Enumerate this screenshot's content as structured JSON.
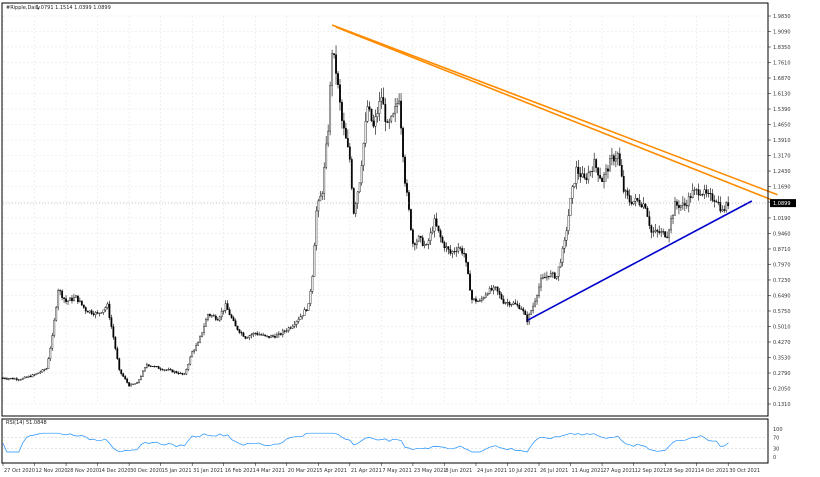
{
  "window": {
    "title": "#Ripple,Daily",
    "ohlc": "1.0791 1.1514 1.0399 1.0899",
    "current_price_label": "1.0899",
    "rsi_label": "RSI(14) 51.0848"
  },
  "colors": {
    "candles": "#000000",
    "resistance_lines": "#ff8c00",
    "support_line": "#0000cd",
    "rsi_line": "#1e90ff",
    "grid": "#d9d9d9",
    "price_marker": "#000000"
  },
  "chart_data": {
    "type": "candlestick",
    "price_axis_ticks": [
      "1.9830",
      "1.9090",
      "1.8350",
      "1.7610",
      "1.6870",
      "1.6130",
      "1.5390",
      "1.4650",
      "1.3910",
      "1.3170",
      "1.2430",
      "1.1690",
      "1.0950",
      "1.0190",
      "0.9460",
      "0.8710",
      "0.7970",
      "0.7230",
      "0.6490",
      "0.5750",
      "0.5010",
      "0.4270",
      "0.3530",
      "0.2790",
      "0.2050",
      "0.1310"
    ],
    "ylim": [
      0.131,
      1.983
    ],
    "x_ticks": [
      "27 Oct 2020",
      "12 Nov 2020",
      "28 Nov 2020",
      "14 Dec 2020",
      "30 Dec 2020",
      "15 Jan 2021",
      "31 Jan 2021",
      "16 Feb 2021",
      "4 Mar 2021",
      "20 Mar 2021",
      "5 Apr 2021",
      "21 Apr 2021",
      "7 May 2021",
      "23 May 2021",
      "8 Jun 2021",
      "24 Jun 2021",
      "10 Jul 2021",
      "26 Jul 2021",
      "11 Aug 2021",
      "27 Aug 2021",
      "12 Sep 2021",
      "28 Sep 2021",
      "14 Oct 2021",
      "30 Oct 2021"
    ],
    "close_path": [
      [
        "2020-10-27",
        0.255
      ],
      [
        "2020-11-05",
        0.25
      ],
      [
        "2020-11-12",
        0.27
      ],
      [
        "2020-11-18",
        0.3
      ],
      [
        "2020-11-21",
        0.45
      ],
      [
        "2020-11-24",
        0.68
      ],
      [
        "2020-11-28",
        0.62
      ],
      [
        "2020-12-03",
        0.64
      ],
      [
        "2020-12-08",
        0.58
      ],
      [
        "2020-12-14",
        0.56
      ],
      [
        "2020-12-19",
        0.6
      ],
      [
        "2020-12-22",
        0.45
      ],
      [
        "2020-12-25",
        0.29
      ],
      [
        "2020-12-30",
        0.22
      ],
      [
        "2021-01-03",
        0.23
      ],
      [
        "2021-01-08",
        0.32
      ],
      [
        "2021-01-15",
        0.3
      ],
      [
        "2021-01-20",
        0.29
      ],
      [
        "2021-01-27",
        0.27
      ],
      [
        "2021-01-31",
        0.38
      ],
      [
        "2021-02-03",
        0.42
      ],
      [
        "2021-02-08",
        0.56
      ],
      [
        "2021-02-13",
        0.54
      ],
      [
        "2021-02-17",
        0.6
      ],
      [
        "2021-02-22",
        0.5
      ],
      [
        "2021-02-27",
        0.45
      ],
      [
        "2021-03-04",
        0.47
      ],
      [
        "2021-03-10",
        0.45
      ],
      [
        "2021-03-16",
        0.46
      ],
      [
        "2021-03-22",
        0.5
      ],
      [
        "2021-03-28",
        0.56
      ],
      [
        "2021-03-31",
        0.6
      ],
      [
        "2021-04-02",
        0.75
      ],
      [
        "2021-04-04",
        1.05
      ],
      [
        "2021-04-07",
        1.15
      ],
      [
        "2021-04-10",
        1.45
      ],
      [
        "2021-04-12",
        1.82
      ],
      [
        "2021-04-14",
        1.72
      ],
      [
        "2021-04-17",
        1.48
      ],
      [
        "2021-04-21",
        1.3
      ],
      [
        "2021-04-23",
        1.05
      ],
      [
        "2021-04-26",
        1.2
      ],
      [
        "2021-04-30",
        1.55
      ],
      [
        "2021-05-03",
        1.45
      ],
      [
        "2021-05-07",
        1.6
      ],
      [
        "2021-05-10",
        1.45
      ],
      [
        "2021-05-13",
        1.5
      ],
      [
        "2021-05-16",
        1.6
      ],
      [
        "2021-05-19",
        1.2
      ],
      [
        "2021-05-21",
        1.05
      ],
      [
        "2021-05-23",
        0.9
      ],
      [
        "2021-05-26",
        0.92
      ],
      [
        "2021-05-30",
        0.88
      ],
      [
        "2021-06-03",
        1.0
      ],
      [
        "2021-06-07",
        0.9
      ],
      [
        "2021-06-11",
        0.85
      ],
      [
        "2021-06-15",
        0.88
      ],
      [
        "2021-06-18",
        0.85
      ],
      [
        "2021-06-22",
        0.63
      ],
      [
        "2021-06-26",
        0.62
      ],
      [
        "2021-06-30",
        0.67
      ],
      [
        "2021-07-04",
        0.68
      ],
      [
        "2021-07-08",
        0.62
      ],
      [
        "2021-07-13",
        0.61
      ],
      [
        "2021-07-17",
        0.59
      ],
      [
        "2021-07-20",
        0.53
      ],
      [
        "2021-07-23",
        0.6
      ],
      [
        "2021-07-27",
        0.72
      ],
      [
        "2021-07-31",
        0.75
      ],
      [
        "2021-08-04",
        0.74
      ],
      [
        "2021-08-08",
        0.9
      ],
      [
        "2021-08-11",
        1.1
      ],
      [
        "2021-08-14",
        1.25
      ],
      [
        "2021-08-18",
        1.2
      ],
      [
        "2021-08-23",
        1.28
      ],
      [
        "2021-08-27",
        1.2
      ],
      [
        "2021-09-01",
        1.3
      ],
      [
        "2021-09-04",
        1.32
      ],
      [
        "2021-09-07",
        1.15
      ],
      [
        "2021-09-10",
        1.1
      ],
      [
        "2021-09-14",
        1.1
      ],
      [
        "2021-09-18",
        1.08
      ],
      [
        "2021-09-21",
        0.95
      ],
      [
        "2021-09-25",
        0.95
      ],
      [
        "2021-09-29",
        0.94
      ],
      [
        "2021-10-03",
        1.08
      ],
      [
        "2021-10-08",
        1.08
      ],
      [
        "2021-10-12",
        1.14
      ],
      [
        "2021-10-16",
        1.15
      ],
      [
        "2021-10-20",
        1.12
      ],
      [
        "2021-10-24",
        1.11
      ],
      [
        "2021-10-27",
        1.05
      ],
      [
        "2021-10-30",
        1.09
      ]
    ],
    "trendlines": [
      {
        "role": "resistance",
        "color": "#ff8c00",
        "from": [
          "2021-04-12",
          1.94
        ],
        "to": [
          "2021-11-24",
          1.13
        ]
      },
      {
        "role": "resistance",
        "color": "#ff8c00",
        "from": [
          "2021-04-14",
          1.93
        ],
        "to": [
          "2021-11-28",
          1.08
        ]
      },
      {
        "role": "support",
        "color": "#0000cd",
        "from": [
          "2021-07-20",
          0.53
        ],
        "to": [
          "2021-11-11",
          1.1
        ]
      }
    ],
    "current_price": 1.0899,
    "rsi": {
      "period": 14,
      "last": 51.0848,
      "levels": [
        "100",
        "70",
        "30",
        "0"
      ],
      "ylim": [
        0,
        100
      ]
    }
  }
}
